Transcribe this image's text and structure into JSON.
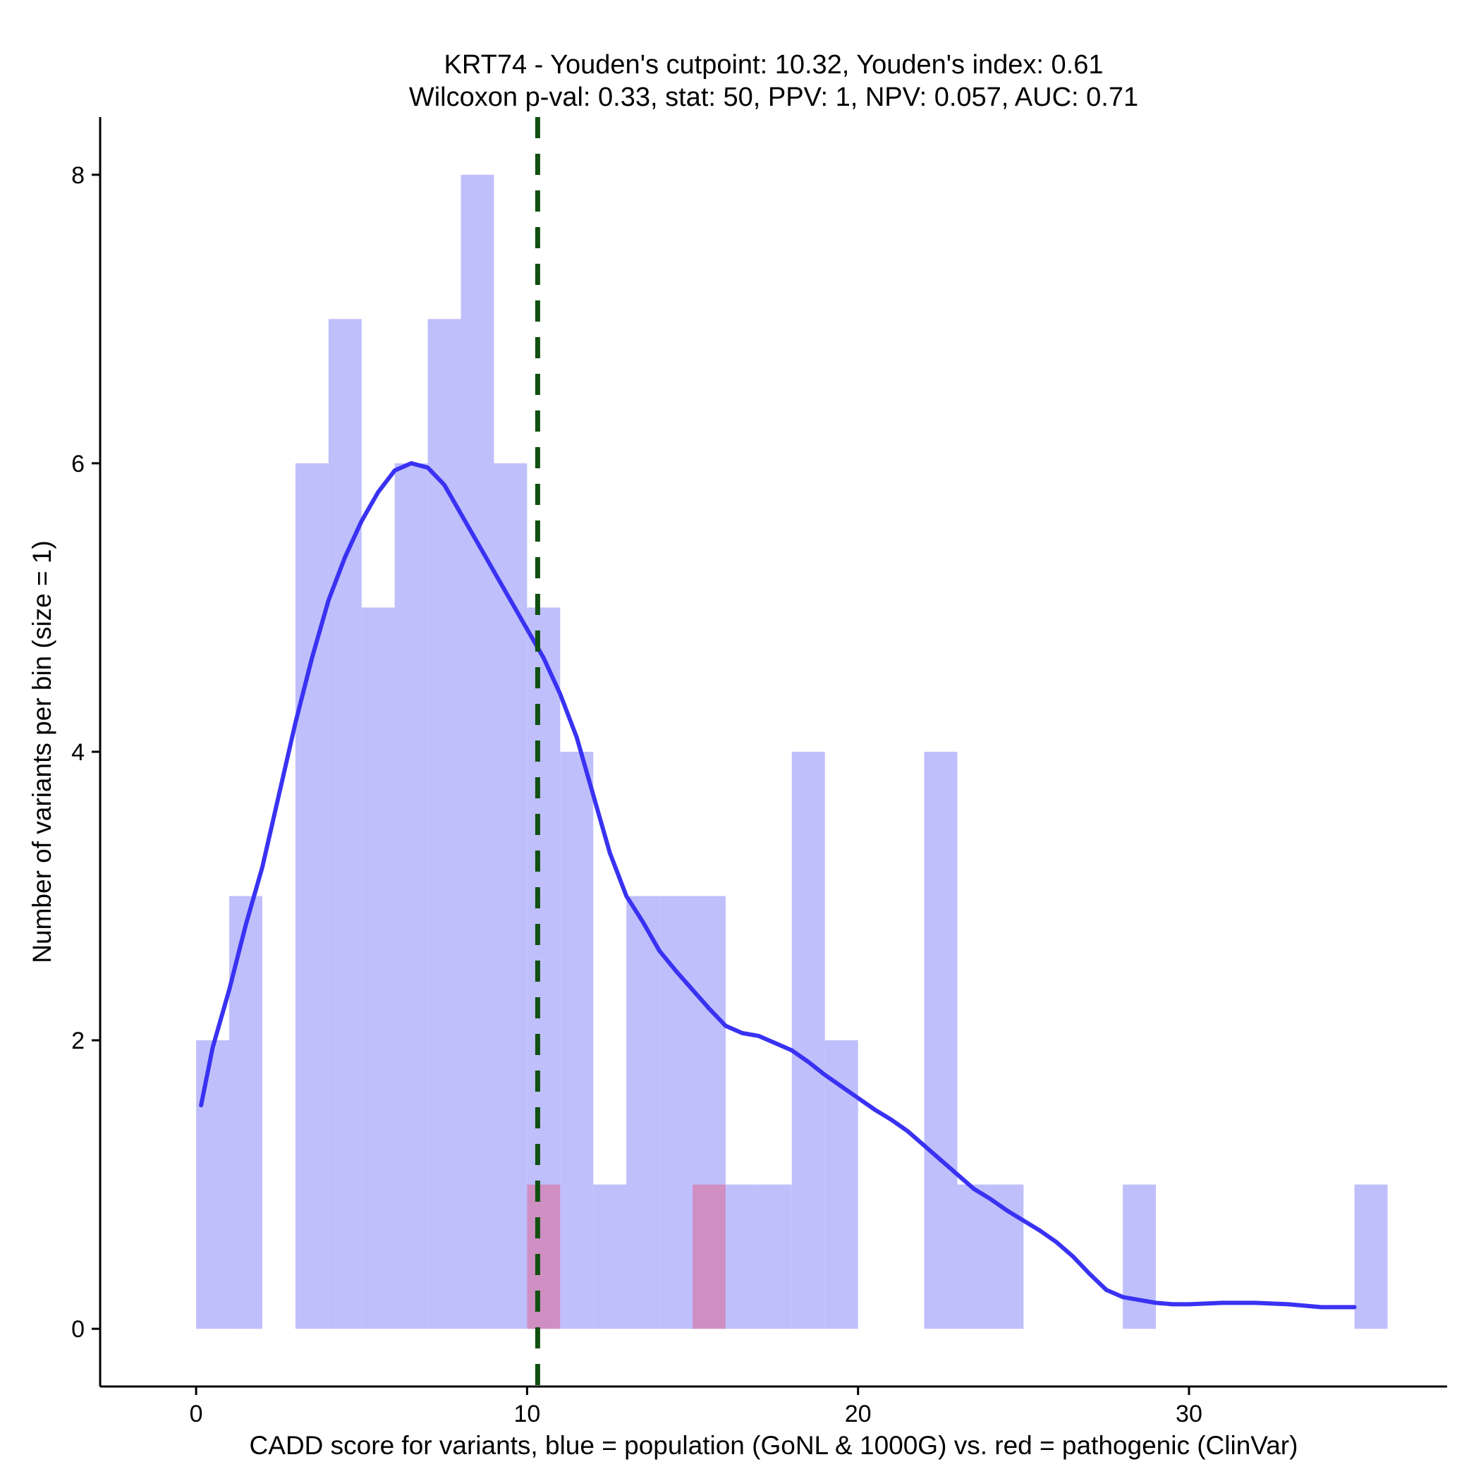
{
  "chart_data": {
    "type": "bar",
    "title": "KRT74 - Youden's cutpoint: 10.32, Youden's index: 0.61",
    "subtitle": "Wilcoxon p-val: 0.33, stat: 50, PPV: 1, NPV: 0.057, AUC: 0.71",
    "xlabel": "CADD score for variants, blue = population (GoNL & 1000G) vs. red = pathogenic (ClinVar)",
    "ylabel": "Number of variants per bin (size = 1)",
    "xlim": [
      -2.9,
      37.8
    ],
    "ylim": [
      -0.4,
      8.4
    ],
    "x_ticks": [
      0,
      10,
      20,
      30
    ],
    "y_ticks": [
      0,
      2,
      4,
      6,
      8
    ],
    "grid": false,
    "bin_width": 1,
    "cutpoint": 10.32,
    "series": [
      {
        "name": "population (GoNL & 1000G)",
        "color": "#BFBFFC",
        "bins": [
          {
            "x0": 0,
            "x1": 1,
            "count": 2
          },
          {
            "x0": 1,
            "x1": 2,
            "count": 3
          },
          {
            "x0": 3,
            "x1": 4,
            "count": 6
          },
          {
            "x0": 4,
            "x1": 5,
            "count": 7
          },
          {
            "x0": 5,
            "x1": 6,
            "count": 5
          },
          {
            "x0": 6,
            "x1": 7,
            "count": 6
          },
          {
            "x0": 7,
            "x1": 8,
            "count": 7
          },
          {
            "x0": 8,
            "x1": 9,
            "count": 8
          },
          {
            "x0": 9,
            "x1": 10,
            "count": 6
          },
          {
            "x0": 10,
            "x1": 11,
            "count": 5
          },
          {
            "x0": 11,
            "x1": 12,
            "count": 4
          },
          {
            "x0": 12,
            "x1": 13,
            "count": 1
          },
          {
            "x0": 13,
            "x1": 14,
            "count": 3
          },
          {
            "x0": 14,
            "x1": 15,
            "count": 3
          },
          {
            "x0": 15,
            "x1": 16,
            "count": 3
          },
          {
            "x0": 16,
            "x1": 17,
            "count": 1
          },
          {
            "x0": 17,
            "x1": 18,
            "count": 1
          },
          {
            "x0": 18,
            "x1": 19,
            "count": 4
          },
          {
            "x0": 19,
            "x1": 20,
            "count": 2
          },
          {
            "x0": 22,
            "x1": 23,
            "count": 4
          },
          {
            "x0": 23,
            "x1": 24,
            "count": 1
          },
          {
            "x0": 24,
            "x1": 25,
            "count": 1
          },
          {
            "x0": 28,
            "x1": 29,
            "count": 1
          },
          {
            "x0": 35,
            "x1": 36,
            "count": 1
          }
        ]
      },
      {
        "name": "pathogenic (ClinVar)",
        "color": "#CF8FC3",
        "bins": [
          {
            "x0": 10,
            "x1": 11,
            "count": 1
          },
          {
            "x0": 15,
            "x1": 16,
            "count": 1
          }
        ]
      }
    ],
    "density": {
      "name": "population density",
      "color": "#3A32F2",
      "x": [
        0.15,
        0.5,
        1.0,
        1.5,
        2.0,
        2.5,
        3.0,
        3.5,
        4.0,
        4.5,
        5.0,
        5.5,
        6.0,
        6.5,
        7.0,
        7.5,
        8.0,
        8.5,
        9.0,
        9.5,
        10.0,
        10.5,
        11.0,
        11.5,
        12.0,
        12.5,
        13.0,
        13.5,
        14.0,
        14.5,
        15.0,
        15.5,
        16.0,
        16.5,
        17.0,
        17.5,
        18.0,
        18.5,
        19.0,
        19.5,
        20.0,
        20.5,
        21.0,
        21.5,
        22.0,
        22.5,
        23.0,
        23.5,
        24.0,
        24.5,
        25.0,
        25.5,
        26.0,
        26.5,
        27.0,
        27.5,
        28.0,
        28.5,
        29.0,
        29.5,
        30.0,
        31.0,
        32.0,
        33.0,
        34.0,
        35.0
      ],
      "y": [
        1.55,
        1.95,
        2.35,
        2.8,
        3.2,
        3.7,
        4.2,
        4.65,
        5.05,
        5.35,
        5.6,
        5.8,
        5.95,
        6.0,
        5.97,
        5.85,
        5.65,
        5.45,
        5.25,
        5.05,
        4.85,
        4.65,
        4.4,
        4.1,
        3.7,
        3.3,
        3.0,
        2.82,
        2.62,
        2.48,
        2.35,
        2.22,
        2.1,
        2.05,
        2.03,
        1.98,
        1.93,
        1.85,
        1.76,
        1.68,
        1.6,
        1.52,
        1.45,
        1.37,
        1.27,
        1.17,
        1.07,
        0.97,
        0.9,
        0.82,
        0.75,
        0.68,
        0.6,
        0.5,
        0.38,
        0.27,
        0.22,
        0.2,
        0.18,
        0.17,
        0.17,
        0.18,
        0.18,
        0.17,
        0.15,
        0.15
      ]
    }
  }
}
